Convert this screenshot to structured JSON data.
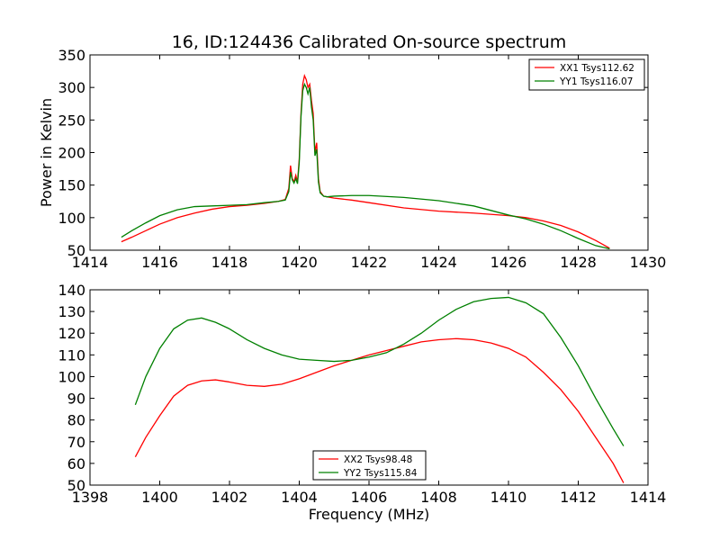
{
  "chart_data": [
    {
      "type": "line",
      "title": "16, ID:124436 Calibrated On-source spectrum",
      "xlabel": "",
      "ylabel": "Power in Kelvin",
      "xlim": [
        1414,
        1430
      ],
      "ylim": [
        50,
        350
      ],
      "xticks": [
        "1414",
        "1416",
        "1418",
        "1420",
        "1422",
        "1424",
        "1426",
        "1428",
        "1430"
      ],
      "yticks": [
        "50",
        "100",
        "150",
        "200",
        "250",
        "300",
        "350"
      ],
      "grid": false,
      "legend_position": "top-right",
      "series": [
        {
          "name": "XX1 Tsys112.62",
          "color": "#ff0000",
          "x": [
            1414.9,
            1415.2,
            1415.6,
            1416.0,
            1416.5,
            1417.0,
            1417.5,
            1418.0,
            1418.5,
            1419.0,
            1419.4,
            1419.6,
            1419.7,
            1419.75,
            1419.8,
            1419.85,
            1419.9,
            1419.95,
            1420.0,
            1420.05,
            1420.1,
            1420.15,
            1420.2,
            1420.25,
            1420.3,
            1420.35,
            1420.4,
            1420.45,
            1420.5,
            1420.55,
            1420.6,
            1420.7,
            1420.8,
            1421.0,
            1421.5,
            1422.0,
            1423.0,
            1424.0,
            1425.0,
            1426.0,
            1426.5,
            1427.0,
            1427.5,
            1428.0,
            1428.5,
            1428.9
          ],
          "y": [
            63,
            70,
            80,
            90,
            100,
            107,
            113,
            117,
            119,
            122,
            125,
            128,
            145,
            180,
            160,
            155,
            165,
            155,
            190,
            260,
            305,
            318,
            312,
            300,
            305,
            280,
            260,
            200,
            215,
            160,
            140,
            133,
            132,
            130,
            127,
            123,
            115,
            110,
            107,
            103,
            100,
            95,
            88,
            78,
            65,
            53
          ]
        },
        {
          "name": "YY1 Tsys116.07",
          "color": "#008000",
          "x": [
            1414.9,
            1415.2,
            1415.6,
            1416.0,
            1416.5,
            1417.0,
            1417.5,
            1418.0,
            1418.5,
            1419.0,
            1419.4,
            1419.6,
            1419.7,
            1419.75,
            1419.8,
            1419.85,
            1419.9,
            1419.95,
            1420.0,
            1420.05,
            1420.1,
            1420.15,
            1420.2,
            1420.25,
            1420.3,
            1420.35,
            1420.4,
            1420.45,
            1420.5,
            1420.55,
            1420.6,
            1420.7,
            1420.8,
            1421.0,
            1421.5,
            1422.0,
            1423.0,
            1424.0,
            1425.0,
            1426.0,
            1426.5,
            1427.0,
            1427.5,
            1428.0,
            1428.5,
            1428.9
          ],
          "y": [
            70,
            80,
            92,
            103,
            112,
            117,
            118,
            119,
            120,
            123,
            125,
            127,
            140,
            170,
            158,
            153,
            160,
            152,
            185,
            255,
            295,
            305,
            300,
            290,
            300,
            270,
            250,
            195,
            205,
            155,
            138,
            133,
            132,
            133,
            134,
            134,
            131,
            126,
            118,
            104,
            98,
            90,
            80,
            68,
            57,
            52
          ]
        }
      ]
    },
    {
      "type": "line",
      "title": "",
      "xlabel": "Frequency (MHz)",
      "ylabel": "",
      "xlim": [
        1398,
        1414
      ],
      "ylim": [
        50,
        140
      ],
      "xticks": [
        "1398",
        "1400",
        "1402",
        "1404",
        "1406",
        "1408",
        "1410",
        "1412",
        "1414"
      ],
      "yticks": [
        "50",
        "60",
        "70",
        "80",
        "90",
        "100",
        "110",
        "120",
        "130",
        "140"
      ],
      "grid": false,
      "legend_position": "bottom-center",
      "series": [
        {
          "name": "XX2 Tsys98.48",
          "color": "#ff0000",
          "x": [
            1399.3,
            1399.6,
            1400.0,
            1400.4,
            1400.8,
            1401.2,
            1401.6,
            1402.0,
            1402.5,
            1403.0,
            1403.5,
            1404.0,
            1404.5,
            1405.0,
            1405.5,
            1406.0,
            1406.5,
            1407.0,
            1407.5,
            1408.0,
            1408.5,
            1409.0,
            1409.5,
            1410.0,
            1410.5,
            1411.0,
            1411.5,
            1412.0,
            1412.5,
            1413.0,
            1413.3
          ],
          "y": [
            63,
            72,
            82,
            91,
            96,
            98,
            98.5,
            97.5,
            96,
            95.5,
            96.5,
            99,
            102,
            105,
            107.5,
            110,
            112,
            114,
            116,
            117,
            117.5,
            117,
            115.5,
            113,
            109,
            102,
            94,
            84,
            72,
            60,
            51
          ]
        },
        {
          "name": "YY2 Tsys115.84",
          "color": "#008000",
          "x": [
            1399.3,
            1399.6,
            1400.0,
            1400.4,
            1400.8,
            1401.2,
            1401.6,
            1402.0,
            1402.5,
            1403.0,
            1403.5,
            1404.0,
            1404.5,
            1405.0,
            1405.5,
            1406.0,
            1406.5,
            1407.0,
            1407.5,
            1408.0,
            1408.5,
            1409.0,
            1409.5,
            1410.0,
            1410.5,
            1411.0,
            1411.5,
            1412.0,
            1412.5,
            1413.0,
            1413.3
          ],
          "y": [
            87,
            100,
            113,
            122,
            126,
            127,
            125,
            122,
            117,
            113,
            110,
            108,
            107.5,
            107,
            107.5,
            109,
            111,
            115,
            120,
            126,
            131,
            134.5,
            136,
            136.5,
            134,
            129,
            118,
            105,
            90,
            76,
            68
          ]
        }
      ]
    }
  ]
}
